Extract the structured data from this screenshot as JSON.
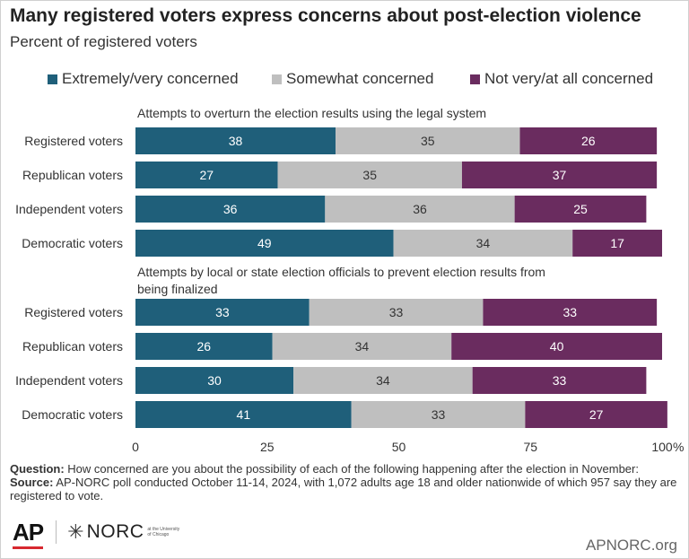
{
  "header": {
    "title": "Many registered voters express concerns about post-election violence",
    "subtitle": "Percent of registered voters"
  },
  "legend": [
    {
      "label": "Extremely/very concerned",
      "color": "#1f5f7a"
    },
    {
      "label": "Somewhat concerned",
      "color": "#bfbfbf"
    },
    {
      "label": "Not very/at all concerned",
      "color": "#6a2c5f"
    }
  ],
  "chart_data": {
    "type": "bar",
    "orientation": "horizontal",
    "stacked": true,
    "xlim": [
      0,
      100
    ],
    "x_ticks": [
      "0",
      "25",
      "50",
      "75",
      "100"
    ],
    "x_unit": "%",
    "groups": [
      {
        "title_lines": [
          "Attempts to overturn the election results using the legal system"
        ],
        "categories": [
          "Registered voters",
          "Republican voters",
          "Independent voters",
          "Democratic voters"
        ],
        "series": [
          {
            "name": "Extremely/very concerned",
            "values": [
              38,
              27,
              36,
              49
            ]
          },
          {
            "name": "Somewhat concerned",
            "values": [
              35,
              35,
              36,
              34
            ]
          },
          {
            "name": "Not very/at all concerned",
            "values": [
              26,
              37,
              25,
              17
            ]
          }
        ]
      },
      {
        "title_lines": [
          "Attempts by local or state election officials to prevent election results from",
          "being finalized"
        ],
        "categories": [
          "Registered voters",
          "Republican voters",
          "Independent voters",
          "Democratic voters"
        ],
        "series": [
          {
            "name": "Extremely/very concerned",
            "values": [
              33,
              26,
              30,
              41
            ]
          },
          {
            "name": "Somewhat concerned",
            "values": [
              33,
              34,
              34,
              33
            ]
          },
          {
            "name": "Not very/at all concerned",
            "values": [
              33,
              40,
              33,
              27
            ]
          }
        ]
      }
    ],
    "colors": [
      "#1f5f7a",
      "#bfbfbf",
      "#6a2c5f"
    ],
    "label_colors": [
      "#ffffff",
      "#333333",
      "#ffffff"
    ]
  },
  "footer": {
    "question_label": "Question:",
    "question_text": "How concerned are you about the possibility of each of the following happening after the election in November:",
    "source_label": "Source:",
    "source_text": "AP-NORC poll conducted October 11-14, 2024, with 1,072 adults age 18 and older nationwide of which 957 say they are registered to vote."
  },
  "logos": {
    "ap": "AP",
    "norc": "NORC",
    "norc_sub": "at the University of Chicago"
  },
  "site": "APNORC.org"
}
